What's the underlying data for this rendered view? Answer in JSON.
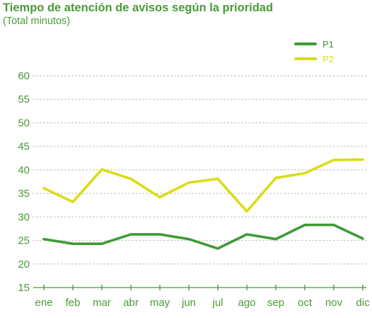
{
  "title": "Tiempo de atención de avisos según la prioridad",
  "subtitle": "(Total minutos)",
  "colors": {
    "text": "#4a9a37",
    "p1": "#3d9b35",
    "p2": "#dadc17",
    "grid": "#b0b0b0"
  },
  "chart_data": {
    "type": "line",
    "title": "Tiempo de atención de avisos según la prioridad",
    "subtitle": "(Total minutos)",
    "xlabel": "",
    "ylabel": "",
    "categories": [
      "ene",
      "feb",
      "mar",
      "abr",
      "may",
      "jun",
      "jul",
      "ago",
      "sep",
      "oct",
      "nov",
      "dic"
    ],
    "ylim": [
      15,
      60
    ],
    "yticks": [
      "15",
      "20",
      "25",
      "30",
      "35",
      "40",
      "45",
      "50",
      "55",
      "60"
    ],
    "grid": true,
    "legend_position": "top-right",
    "series": [
      {
        "name": "P1",
        "color": "#3d9b35",
        "values": [
          25.3,
          24.3,
          24.3,
          26.3,
          26.3,
          25.3,
          23.3,
          26.3,
          25.3,
          28.3,
          28.3,
          25.4
        ]
      },
      {
        "name": "P2",
        "color": "#dadc17",
        "values": [
          36.1,
          33.2,
          40.1,
          38.1,
          34.2,
          37.3,
          38.1,
          31.2,
          38.3,
          39.3,
          42.1,
          42.2
        ]
      }
    ]
  }
}
